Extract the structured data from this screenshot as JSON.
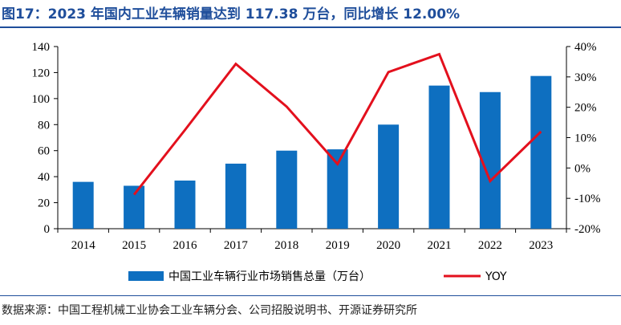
{
  "figure_title": "图17：2023 年国内工业车辆销量达到 117.38 万台，同比增长 12.00%",
  "source": "数据来源：中国工程机械工业协会工业车辆分会、公司招股说明书、开源证券研究所",
  "colors": {
    "bar": "#0e6fc0",
    "line": "#e3101d",
    "title": "#1f4e9b"
  },
  "chart_data": {
    "type": "bar+line",
    "categories": [
      "2014",
      "2015",
      "2016",
      "2017",
      "2018",
      "2019",
      "2020",
      "2021",
      "2022",
      "2023"
    ],
    "series": [
      {
        "name": "中国工业车辆行业市场销售总量（万台）",
        "type": "bar",
        "axis": "left",
        "values": [
          36,
          33,
          37,
          50,
          60,
          61,
          80,
          110,
          105,
          117.38
        ]
      },
      {
        "name": "YOY",
        "type": "line",
        "axis": "right",
        "values": [
          null,
          -8.8,
          12.5,
          34.3,
          20.2,
          1.3,
          31.6,
          37.5,
          -4.3,
          12.0
        ]
      }
    ],
    "left_axis": {
      "ylim": [
        0,
        140
      ],
      "ticks": [
        "0",
        "20",
        "40",
        "60",
        "80",
        "100",
        "120",
        "140"
      ]
    },
    "right_axis": {
      "ylim": [
        -20,
        40
      ],
      "ticks": [
        "-20%",
        "-10%",
        "0%",
        "10%",
        "20%",
        "30%",
        "40%"
      ]
    },
    "grid": false,
    "legend_position": "bottom"
  }
}
